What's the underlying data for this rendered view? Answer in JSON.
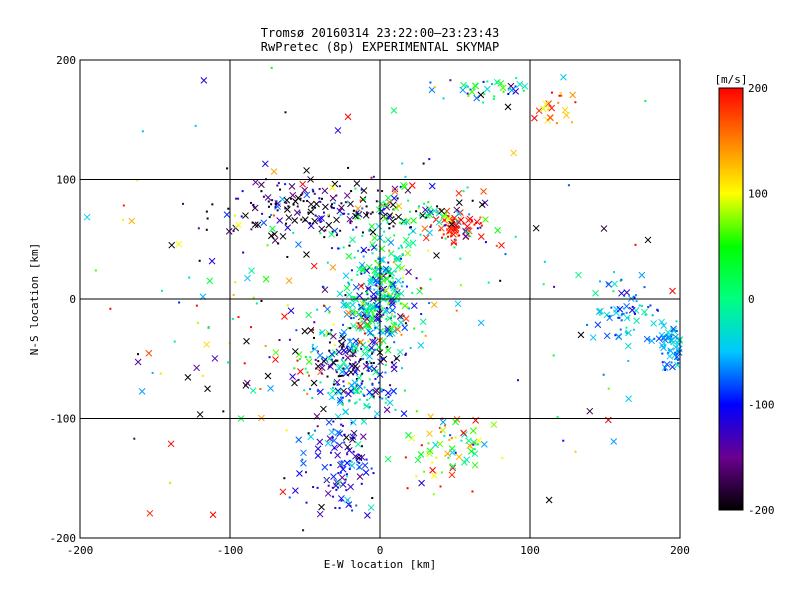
{
  "chart_data": {
    "type": "scatter",
    "title": "Tromsø 20160314 23:22:00–23:23:43",
    "subtitle": "RwPretec (8p) EXPERIMENTAL SKYMAP",
    "xlabel": "E-W location [km]",
    "ylabel": "N-S location [km]",
    "xlim": [
      -200,
      200
    ],
    "ylim": [
      -200,
      200
    ],
    "xticks": [
      -200,
      -100,
      0,
      100,
      200
    ],
    "yticks": [
      -200,
      -100,
      0,
      100,
      200
    ],
    "grid": true,
    "marker_types": [
      "dot",
      "cross"
    ],
    "colorbar": {
      "label": "[m/s]",
      "range": [
        -200,
        200
      ],
      "ticks": [
        200,
        100,
        0,
        -100,
        -200
      ],
      "colormap": [
        "#000000",
        "#6a0090",
        "#0000ff",
        "#00c8ff",
        "#00ff80",
        "#00ff00",
        "#ffff00",
        "#ff8000",
        "#ff0000"
      ]
    },
    "clusters": [
      {
        "center": [
          0,
          5
        ],
        "spread": [
          10,
          22
        ],
        "count": 220,
        "value_mean": -40,
        "value_spread": 60
      },
      {
        "center": [
          -10,
          -10
        ],
        "spread": [
          18,
          18
        ],
        "count": 120,
        "value_mean": -20,
        "value_spread": 80
      },
      {
        "center": [
          -20,
          -50
        ],
        "spread": [
          18,
          12
        ],
        "count": 140,
        "value_mean": -120,
        "value_spread": 100
      },
      {
        "center": [
          -15,
          -80
        ],
        "spread": [
          15,
          10
        ],
        "count": 80,
        "value_mean": -60,
        "value_spread": 60
      },
      {
        "center": [
          -25,
          -140
        ],
        "spread": [
          12,
          25
        ],
        "count": 120,
        "value_mean": -110,
        "value_spread": 40
      },
      {
        "center": [
          45,
          -125
        ],
        "spread": [
          15,
          15
        ],
        "count": 70,
        "value_mean": 70,
        "value_spread": 80
      },
      {
        "center": [
          52,
          60
        ],
        "spread": [
          8,
          6
        ],
        "count": 60,
        "value_mean": 190,
        "value_spread": 20
      },
      {
        "center": [
          -50,
          75
        ],
        "spread": [
          35,
          12
        ],
        "count": 180,
        "value_mean": -180,
        "value_spread": 60
      },
      {
        "center": [
          25,
          70
        ],
        "spread": [
          30,
          18
        ],
        "count": 120,
        "value_mean": -30,
        "value_spread": 120
      },
      {
        "center": [
          70,
          175
        ],
        "spread": [
          15,
          4
        ],
        "count": 40,
        "value_mean": -30,
        "value_spread": 80
      },
      {
        "center": [
          118,
          160
        ],
        "spread": [
          8,
          8
        ],
        "count": 20,
        "value_mean": 160,
        "value_spread": 40
      },
      {
        "center": [
          165,
          -15
        ],
        "spread": [
          12,
          15
        ],
        "count": 70,
        "value_mean": -60,
        "value_spread": 30
      },
      {
        "center": [
          195,
          -38
        ],
        "spread": [
          6,
          10
        ],
        "count": 80,
        "value_mean": -60,
        "value_spread": 20
      },
      {
        "center": [
          -60,
          -30
        ],
        "spread": [
          40,
          40
        ],
        "count": 80,
        "value_mean": 0,
        "value_spread": 160
      },
      {
        "center": [
          0,
          0
        ],
        "spread": [
          110,
          110
        ],
        "count": 160,
        "value_mean": 0,
        "value_spread": 200
      }
    ]
  }
}
